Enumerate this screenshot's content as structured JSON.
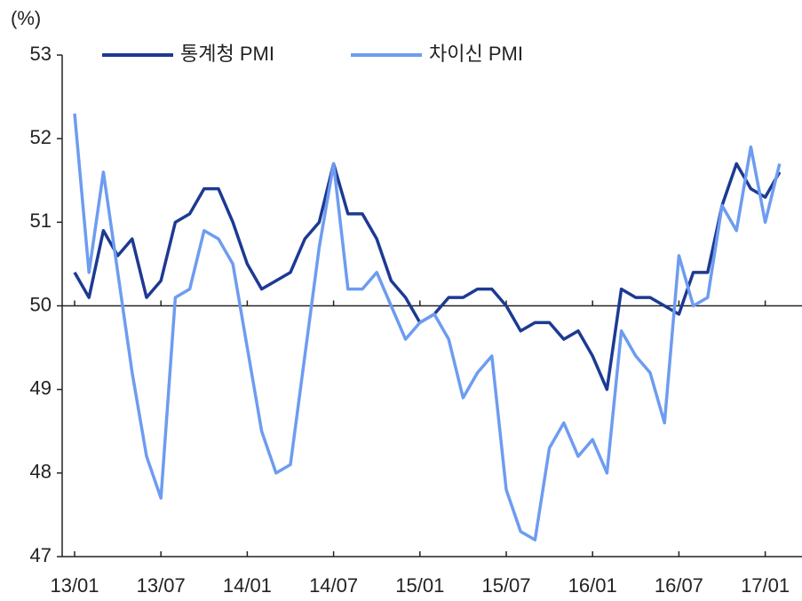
{
  "chart_data": {
    "type": "line",
    "y_unit": "(%)",
    "categories": [
      "13/01",
      null,
      null,
      null,
      null,
      null,
      "13/07",
      null,
      null,
      null,
      null,
      null,
      "14/01",
      null,
      null,
      null,
      null,
      null,
      "14/07",
      null,
      null,
      null,
      null,
      null,
      "15/01",
      null,
      null,
      null,
      null,
      null,
      "15/07",
      null,
      null,
      null,
      null,
      null,
      "16/01",
      null,
      null,
      null,
      null,
      null,
      "16/07",
      null,
      null,
      null,
      null,
      null,
      "17/01",
      null
    ],
    "series": [
      {
        "name": "통계청 PMI",
        "color": "#1c3a92",
        "values": [
          50.4,
          50.1,
          50.9,
          50.6,
          50.8,
          50.1,
          50.3,
          51.0,
          51.1,
          51.4,
          51.4,
          51.0,
          50.5,
          50.2,
          50.3,
          50.4,
          50.8,
          51.0,
          51.7,
          51.1,
          51.1,
          50.8,
          50.3,
          50.1,
          49.8,
          49.9,
          50.1,
          50.1,
          50.2,
          50.2,
          50.0,
          49.7,
          49.8,
          49.8,
          49.6,
          49.7,
          49.4,
          49.0,
          50.2,
          50.1,
          50.1,
          50.0,
          49.9,
          50.4,
          50.4,
          51.2,
          51.7,
          51.4,
          51.3,
          51.6
        ]
      },
      {
        "name": "차이신 PMI",
        "color": "#6d9cf0",
        "values": [
          52.3,
          50.4,
          51.6,
          50.4,
          49.2,
          48.2,
          47.7,
          50.1,
          50.2,
          50.9,
          50.8,
          50.5,
          49.5,
          48.5,
          48.0,
          48.1,
          49.4,
          50.7,
          51.7,
          50.2,
          50.2,
          50.4,
          50.0,
          49.6,
          49.8,
          49.9,
          49.6,
          48.9,
          49.2,
          49.4,
          47.8,
          47.3,
          47.2,
          48.3,
          48.6,
          48.2,
          48.4,
          48.0,
          49.7,
          49.4,
          49.2,
          48.6,
          50.6,
          50.0,
          50.1,
          51.2,
          50.9,
          51.9,
          51.0,
          51.7
        ]
      }
    ],
    "ylim": [
      47,
      53
    ],
    "yticks": [
      47,
      48,
      49,
      50,
      51,
      52,
      53
    ],
    "reference_line": 50,
    "legend": "top"
  }
}
